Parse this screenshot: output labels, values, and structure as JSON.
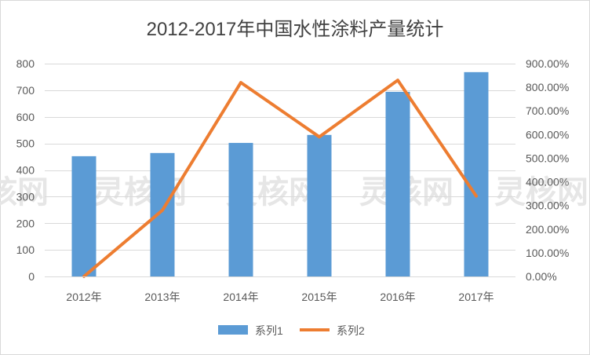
{
  "chart_data": {
    "type": "bar+line",
    "title": "2012-2017年中国水性涂料产量统计",
    "categories": [
      "2012年",
      "2013年",
      "2014年",
      "2015年",
      "2016年",
      "2017年"
    ],
    "series": [
      {
        "name": "系列1",
        "type": "bar",
        "axis": "left",
        "values": [
          452,
          464,
          502,
          532,
          694,
          768
        ]
      },
      {
        "name": "系列2",
        "type": "line",
        "axis": "right",
        "values": [
          0.0,
          2.8,
          8.2,
          5.9,
          8.3,
          3.4
        ]
      }
    ],
    "y_left": {
      "ylim": [
        0,
        800
      ],
      "ticks": [
        "0",
        "100",
        "200",
        "300",
        "400",
        "500",
        "600",
        "700",
        "800"
      ]
    },
    "y_right": {
      "ylim": [
        0,
        9
      ],
      "ticks": [
        "0.00%",
        "100.00%",
        "200.00%",
        "300.00%",
        "400.00%",
        "500.00%",
        "600.00%",
        "700.00%",
        "800.00%",
        "900.00%"
      ]
    },
    "grid": true,
    "legend_position": "bottom",
    "watermark": "灵核网",
    "colors": {
      "bar": "#5b9bd5",
      "line": "#ed7d31",
      "grid": "#d9d9d9",
      "text": "#595959",
      "title": "#404040"
    }
  }
}
